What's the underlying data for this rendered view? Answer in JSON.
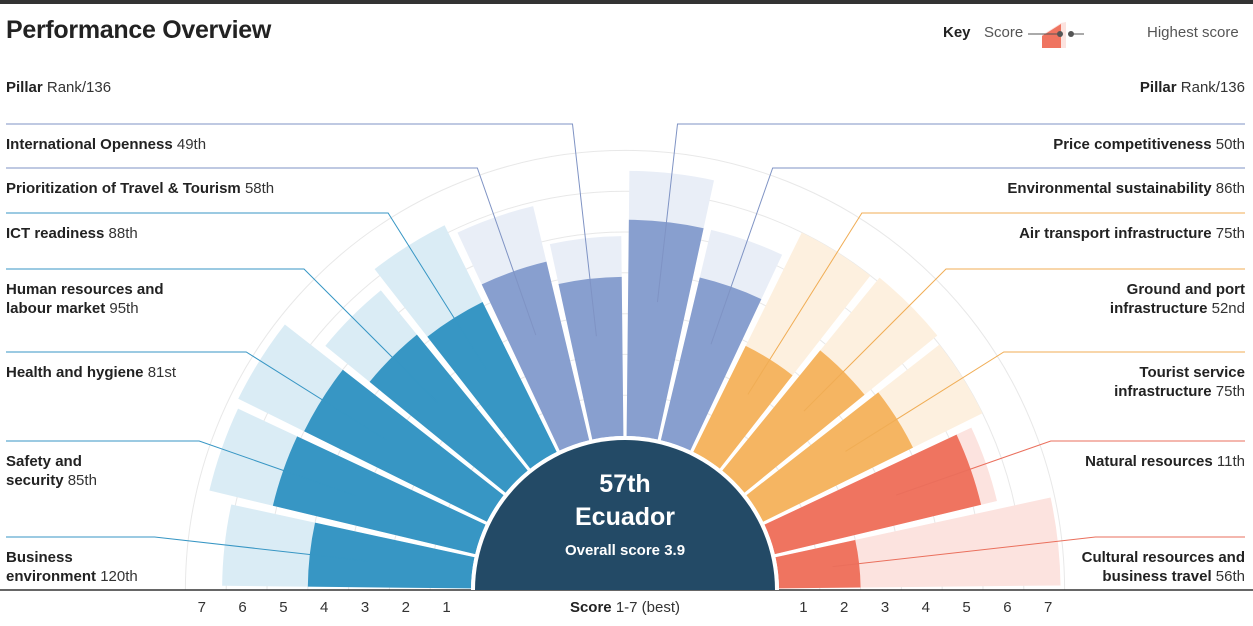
{
  "title": "Performance Overview",
  "key": {
    "label": "Key",
    "score": "Score",
    "highest": "Highest score"
  },
  "headers": {
    "bold": "Pillar",
    "rest": "Rank/136"
  },
  "center": {
    "rank": "57th",
    "country": "Ecuador",
    "score_label": "Overall score",
    "score_value": "3.9"
  },
  "axis": {
    "title_bold": "Score",
    "title_rest": "1-7 (best)",
    "ticks_left": [
      "7",
      "6",
      "5",
      "4",
      "3",
      "2",
      "1"
    ],
    "ticks_right": [
      "1",
      "2",
      "3",
      "4",
      "5",
      "6",
      "7"
    ]
  },
  "colors": {
    "enabling": "#3796c4",
    "enabling_light": "#daecf5",
    "policy": "#889fcf",
    "policy_light": "#e9eef7",
    "infrastructure": "#f5b562",
    "infrastructure_light": "#fdf0df",
    "natural": "#ef7460",
    "natural_light": "#fce3df",
    "center": "#234a66"
  },
  "chart_data": {
    "type": "polar-bar",
    "scale": [
      1,
      7
    ],
    "overall_rank": "57th",
    "overall_score": 3.9,
    "pillars": [
      {
        "name": "Business environment",
        "rank": "120th",
        "score": 4.0,
        "highest": 6.1,
        "group": "enabling",
        "lines": [
          "Business",
          "environment"
        ]
      },
      {
        "name": "Safety and security",
        "rank": "85th",
        "score": 5.1,
        "highest": 6.7,
        "group": "enabling",
        "lines": [
          "Safety and",
          "security"
        ]
      },
      {
        "name": "Health and hygiene",
        "rank": "81st",
        "score": 5.0,
        "highest": 6.8,
        "group": "enabling",
        "lines": [
          "Health and hygiene"
        ]
      },
      {
        "name": "Human resources and labour market",
        "rank": "95th",
        "score": 4.3,
        "highest": 5.7,
        "group": "enabling",
        "lines": [
          "Human resources and",
          "labour market"
        ]
      },
      {
        "name": "ICT readiness",
        "rank": "88th",
        "score": 4.1,
        "highest": 6.2,
        "group": "enabling",
        "lines": [
          "ICT readiness"
        ]
      },
      {
        "name": "Prioritization of Travel & Tourism",
        "rank": "58th",
        "score": 4.5,
        "highest": 5.9,
        "group": "policy",
        "lines": [
          "Prioritization of Travel & Tourism"
        ]
      },
      {
        "name": "International Openness",
        "rank": "49th",
        "score": 3.9,
        "highest": 4.9,
        "group": "policy",
        "lines": [
          "International Openness"
        ]
      },
      {
        "name": "Price competitiveness",
        "rank": "50th",
        "score": 5.3,
        "highest": 6.5,
        "group": "policy",
        "lines": [
          "Price competitiveness"
        ]
      },
      {
        "name": "Environmental sustainability",
        "rank": "86th",
        "score": 4.1,
        "highest": 5.3,
        "group": "policy",
        "lines": [
          "Environmental sustainability"
        ]
      },
      {
        "name": "Air transport infrastructure",
        "rank": "75th",
        "score": 2.9,
        "highest": 6.0,
        "group": "infrastructure",
        "lines": [
          "Air transport infrastructure"
        ]
      },
      {
        "name": "Ground and port infrastructure",
        "rank": "52nd",
        "score": 3.8,
        "highest": 6.1,
        "group": "infrastructure",
        "lines": [
          "Ground and port",
          "infrastructure"
        ]
      },
      {
        "name": "Tourist service infrastructure",
        "rank": "75th",
        "score": 4.1,
        "highest": 6.0,
        "group": "infrastructure",
        "lines": [
          "Tourist service",
          "infrastructure"
        ]
      },
      {
        "name": "Natural resources",
        "rank": "11th",
        "score": 5.2,
        "highest": 5.6,
        "group": "natural",
        "lines": [
          "Natural resources"
        ]
      },
      {
        "name": "Cultural resources and business travel",
        "rank": "56th",
        "score": 2.0,
        "highest": 6.9,
        "group": "natural",
        "lines": [
          "Cultural resources and",
          "business travel"
        ]
      }
    ]
  }
}
